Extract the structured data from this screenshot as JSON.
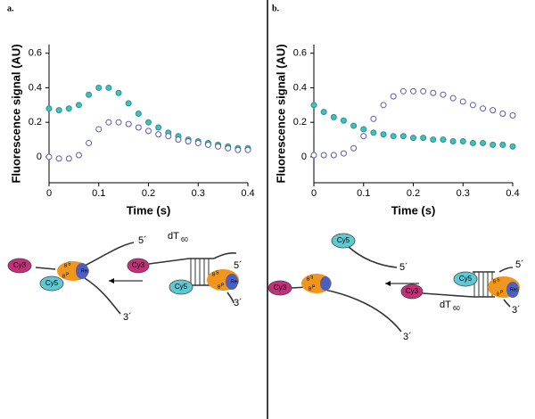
{
  "chart_data": [
    {
      "type": "scatter",
      "panel_label": "a.",
      "y_label": "Fluorescence signal (AU)",
      "x_label": "Time (s)",
      "xlim": [
        0,
        0.4
      ],
      "xticks": [
        0,
        0.1,
        0.2,
        0.3,
        0.4
      ],
      "ylim": [
        -0.15,
        0.65
      ],
      "yticks": [
        0,
        0.2,
        0.4,
        0.6
      ],
      "x": [
        0,
        0.02,
        0.04,
        0.06,
        0.08,
        0.1,
        0.12,
        0.14,
        0.16,
        0.18,
        0.2,
        0.22,
        0.24,
        0.26,
        0.28,
        0.3,
        0.32,
        0.34,
        0.36,
        0.38,
        0.4
      ],
      "series": [
        {
          "color": "#3fc1c0",
          "marker": "filled",
          "values": [
            0.28,
            0.27,
            0.28,
            0.3,
            0.36,
            0.4,
            0.4,
            0.37,
            0.31,
            0.25,
            0.2,
            0.17,
            0.14,
            0.12,
            0.1,
            0.09,
            0.08,
            0.07,
            0.06,
            0.05,
            0.05
          ]
        },
        {
          "color": "#5a5ab4",
          "marker": "open",
          "values": [
            0,
            -0.01,
            -0.01,
            0.01,
            0.08,
            0.16,
            0.2,
            0.2,
            0.19,
            0.17,
            0.15,
            0.13,
            0.12,
            0.1,
            0.09,
            0.08,
            0.07,
            0.06,
            0.05,
            0.04,
            0.04
          ]
        }
      ]
    },
    {
      "type": "scatter",
      "panel_label": "b.",
      "y_label": "Fluorescence signal (AU)",
      "x_label": "Time (s)",
      "xlim": [
        0,
        0.4
      ],
      "xticks": [
        0,
        0.1,
        0.2,
        0.3,
        0.4
      ],
      "ylim": [
        -0.15,
        0.65
      ],
      "yticks": [
        0,
        0.2,
        0.4,
        0.6
      ],
      "x": [
        0,
        0.02,
        0.04,
        0.06,
        0.08,
        0.1,
        0.12,
        0.14,
        0.16,
        0.18,
        0.2,
        0.22,
        0.24,
        0.26,
        0.28,
        0.3,
        0.32,
        0.34,
        0.36,
        0.38,
        0.4
      ],
      "series": [
        {
          "color": "#3fc1c0",
          "marker": "filled",
          "values": [
            0.3,
            0.26,
            0.23,
            0.21,
            0.18,
            0.16,
            0.14,
            0.13,
            0.12,
            0.12,
            0.11,
            0.11,
            0.1,
            0.1,
            0.09,
            0.09,
            0.08,
            0.08,
            0.07,
            0.07,
            0.06
          ]
        },
        {
          "color": "#5a5ab4",
          "marker": "open",
          "values": [
            0.01,
            0.01,
            0.01,
            0.02,
            0.05,
            0.12,
            0.22,
            0.3,
            0.35,
            0.38,
            0.38,
            0.38,
            0.37,
            0.36,
            0.34,
            0.32,
            0.3,
            0.28,
            0.27,
            0.25,
            0.24
          ]
        }
      ]
    }
  ],
  "diagram_labels": {
    "cy3": "Cy3",
    "cy5": "Cy5",
    "five_prime": "5´",
    "three_prime": "3´",
    "dt": "dT",
    "dt_sub": "60",
    "b": "B",
    "s": "S",
    "p": "P",
    "rec": "Rec"
  }
}
